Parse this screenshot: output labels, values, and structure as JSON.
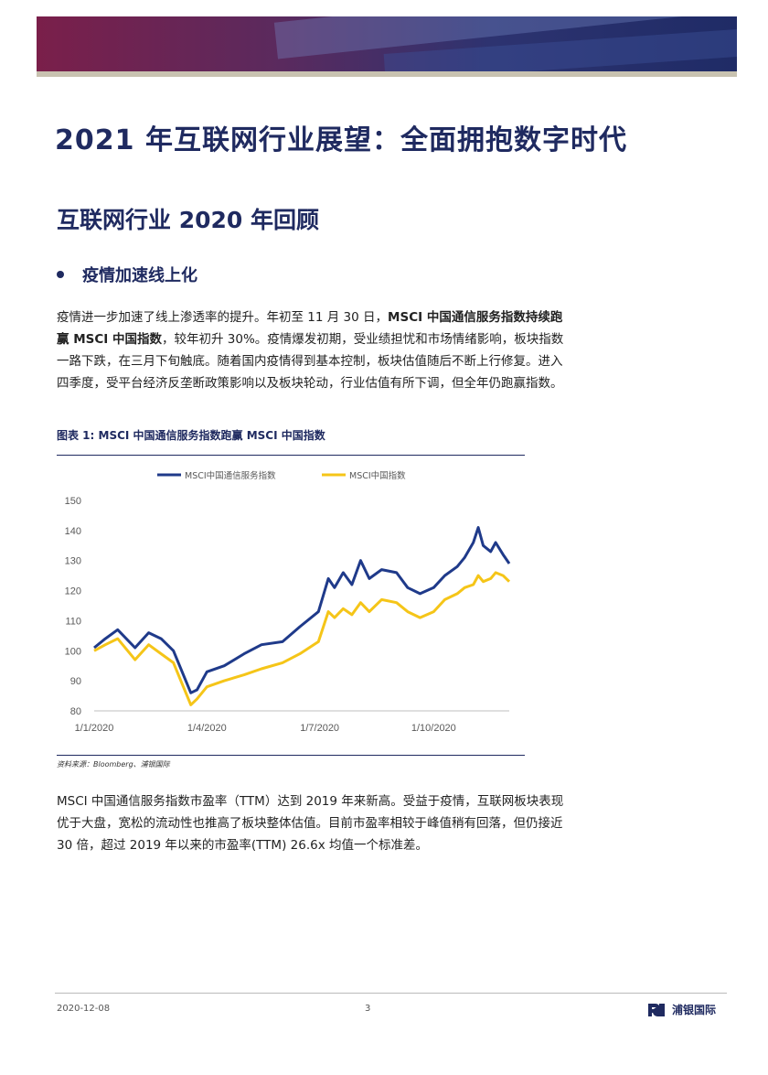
{
  "doc": {
    "title": "2021 年互联网行业展望：全面拥抱数字时代",
    "section_title": "互联网行业 2020 年回顾",
    "bullet": "疫情加速线上化",
    "para1": {
      "t1": "疫情进一步加速了线上渗透率的提升。年初至 11 月 30 日，",
      "bold": "MSCI 中国通信服务指数持续跑赢 MSCI 中国指数",
      "t2": "，较年初升 30%。疫情爆发初期，受业绩担忧和市场情绪影响，板块指数一路下跌，在三月下旬触底。随着国内疫情得到基本控制，板块估值随后不断上行修复。进入四季度，受平台经济反垄断政策影响以及板块轮动，行业估值有所下调，但全年仍跑赢指数。"
    },
    "figure_caption": "图表 1: MSCI 中国通信服务指数跑赢 MSCI 中国指数",
    "source": "资料来源：Bloomberg、浦银国际",
    "para2": "MSCI 中国通信服务指数市盈率（TTM）达到 2019 年来新高。受益于疫情，互联网板块表现优于大盘，宽松的流动性也推高了板块整体估值。目前市盈率相较于峰值稍有回落，但仍接近 30 倍，超过 2019 年以来的市盈率(TTM) 26.6x 均值一个标准差。"
  },
  "footer": {
    "date": "2020-12-08",
    "page": "3",
    "logo_text": "浦银国际"
  },
  "colors": {
    "brand_navy": "#1f2a60",
    "series_blue": "#1f3a8a",
    "series_gold": "#f5c518"
  },
  "chart_data": {
    "type": "line",
    "title": "",
    "xlabel": "",
    "ylabel": "",
    "ylim": [
      80,
      150
    ],
    "yticks": [
      80,
      90,
      100,
      110,
      120,
      130,
      140,
      150
    ],
    "x_ticks": [
      "1/1/2020",
      "1/4/2020",
      "1/7/2020",
      "1/10/2020"
    ],
    "x_range": [
      "2020-01-01",
      "2020-12-01"
    ],
    "legend_position": "top-center",
    "grid": false,
    "series": [
      {
        "name": "MSCI中国通信服务指数",
        "color": "#1f3a8a",
        "points": [
          [
            "2020-01-01",
            101
          ],
          [
            "2020-01-10",
            104
          ],
          [
            "2020-01-20",
            107
          ],
          [
            "2020-02-03",
            101
          ],
          [
            "2020-02-14",
            106
          ],
          [
            "2020-02-24",
            104
          ],
          [
            "2020-03-05",
            100
          ],
          [
            "2020-03-12",
            93
          ],
          [
            "2020-03-19",
            86
          ],
          [
            "2020-03-24",
            87
          ],
          [
            "2020-04-01",
            93
          ],
          [
            "2020-04-15",
            95
          ],
          [
            "2020-05-01",
            99
          ],
          [
            "2020-05-15",
            102
          ],
          [
            "2020-06-01",
            103
          ],
          [
            "2020-06-15",
            108
          ],
          [
            "2020-06-30",
            113
          ],
          [
            "2020-07-08",
            124
          ],
          [
            "2020-07-13",
            121
          ],
          [
            "2020-07-20",
            126
          ],
          [
            "2020-07-27",
            122
          ],
          [
            "2020-08-03",
            130
          ],
          [
            "2020-08-10",
            124
          ],
          [
            "2020-08-20",
            127
          ],
          [
            "2020-09-01",
            126
          ],
          [
            "2020-09-10",
            121
          ],
          [
            "2020-09-20",
            119
          ],
          [
            "2020-10-01",
            121
          ],
          [
            "2020-10-10",
            125
          ],
          [
            "2020-10-20",
            128
          ],
          [
            "2020-10-26",
            131
          ],
          [
            "2020-11-02",
            136
          ],
          [
            "2020-11-06",
            141
          ],
          [
            "2020-11-10",
            135
          ],
          [
            "2020-11-16",
            133
          ],
          [
            "2020-11-20",
            136
          ],
          [
            "2020-11-26",
            132
          ],
          [
            "2020-12-01",
            129
          ]
        ]
      },
      {
        "name": "MSCI中国指数",
        "color": "#f5c518",
        "points": [
          [
            "2020-01-01",
            100
          ],
          [
            "2020-01-10",
            102
          ],
          [
            "2020-01-20",
            104
          ],
          [
            "2020-02-03",
            97
          ],
          [
            "2020-02-14",
            102
          ],
          [
            "2020-02-24",
            99
          ],
          [
            "2020-03-05",
            96
          ],
          [
            "2020-03-12",
            89
          ],
          [
            "2020-03-19",
            82
          ],
          [
            "2020-03-24",
            84
          ],
          [
            "2020-04-01",
            88
          ],
          [
            "2020-04-15",
            90
          ],
          [
            "2020-05-01",
            92
          ],
          [
            "2020-05-15",
            94
          ],
          [
            "2020-06-01",
            96
          ],
          [
            "2020-06-15",
            99
          ],
          [
            "2020-06-30",
            103
          ],
          [
            "2020-07-08",
            113
          ],
          [
            "2020-07-13",
            111
          ],
          [
            "2020-07-20",
            114
          ],
          [
            "2020-07-27",
            112
          ],
          [
            "2020-08-03",
            116
          ],
          [
            "2020-08-10",
            113
          ],
          [
            "2020-08-20",
            117
          ],
          [
            "2020-09-01",
            116
          ],
          [
            "2020-09-10",
            113
          ],
          [
            "2020-09-20",
            111
          ],
          [
            "2020-10-01",
            113
          ],
          [
            "2020-10-10",
            117
          ],
          [
            "2020-10-20",
            119
          ],
          [
            "2020-10-26",
            121
          ],
          [
            "2020-11-02",
            122
          ],
          [
            "2020-11-06",
            125
          ],
          [
            "2020-11-10",
            123
          ],
          [
            "2020-11-16",
            124
          ],
          [
            "2020-11-20",
            126
          ],
          [
            "2020-11-26",
            125
          ],
          [
            "2020-12-01",
            123
          ]
        ]
      }
    ]
  }
}
